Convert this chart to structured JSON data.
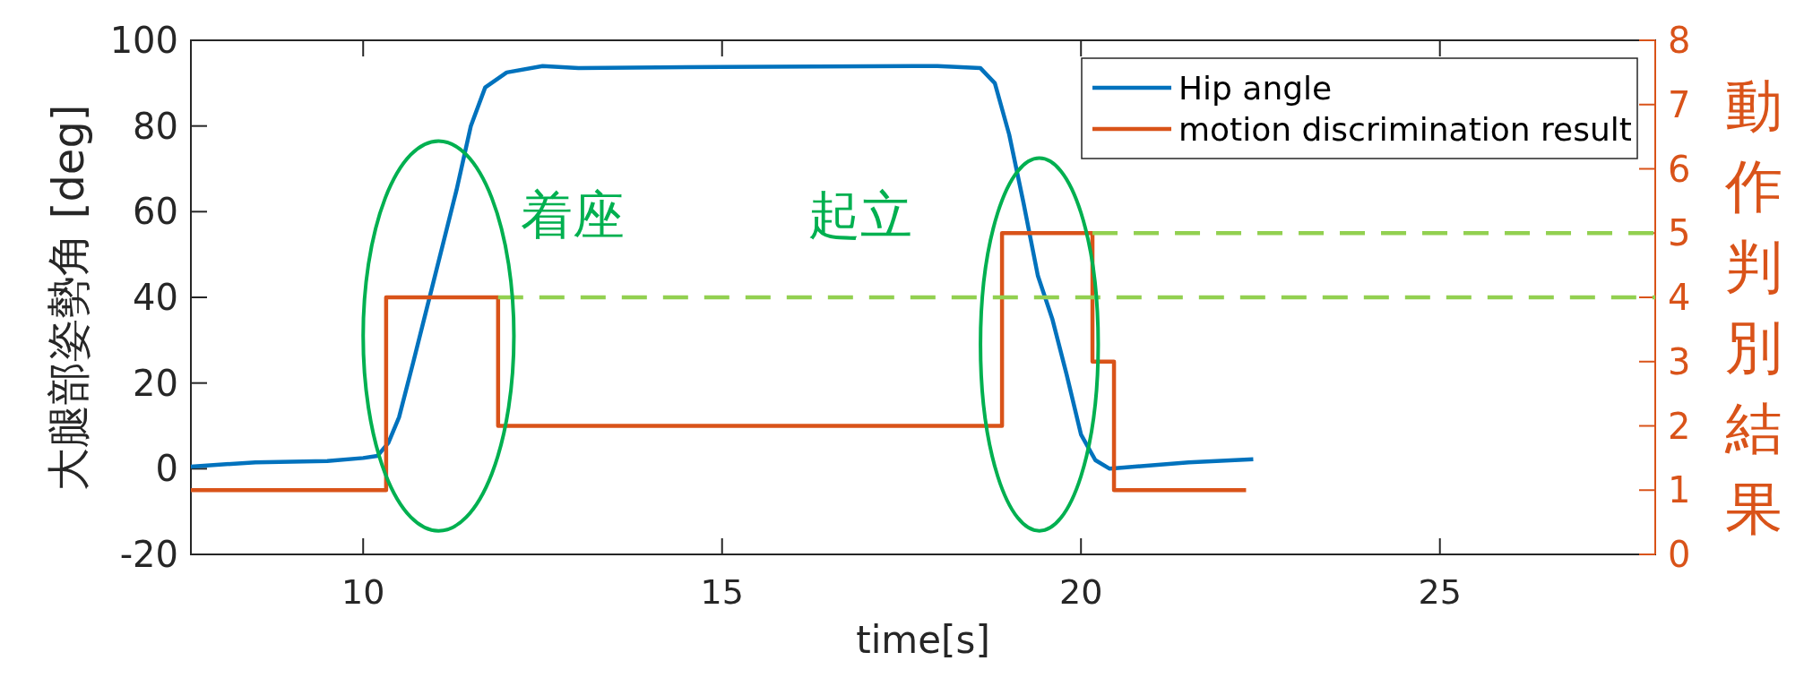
{
  "chart_data": {
    "type": "line",
    "xlabel": "time[s]",
    "ylabel": "大腿部姿勢角 [deg]",
    "y2label": "動作判別結果",
    "xlim": [
      7.6,
      28
    ],
    "xticks": [
      10,
      15,
      20,
      25
    ],
    "ylim": [
      -20,
      100
    ],
    "yticks": [
      -20,
      0,
      20,
      40,
      60,
      80,
      100
    ],
    "y2lim": [
      0,
      8
    ],
    "y2ticks": [
      0,
      1,
      2,
      3,
      4,
      5,
      6,
      7,
      8
    ],
    "legend": "top right",
    "grid": false,
    "series": [
      {
        "name": "Hip angle",
        "color": "#0072bd",
        "x": [
          7.6,
          8.5,
          9.5,
          10.0,
          10.2,
          10.35,
          10.5,
          10.7,
          11.0,
          11.3,
          11.5,
          11.7,
          12.0,
          12.5,
          13,
          15,
          18,
          18.6,
          18.8,
          19.0,
          19.2,
          19.4,
          19.6,
          19.8,
          20.0,
          20.2,
          20.4,
          20.6,
          21.5,
          22.4
        ],
        "values": [
          0.5,
          1.5,
          1.8,
          2.5,
          3,
          6,
          12,
          25,
          45,
          65,
          80,
          89,
          92.5,
          94,
          93.5,
          93.8,
          94,
          93.5,
          90,
          78,
          62,
          45,
          35,
          22,
          8,
          2,
          0,
          0.3,
          1.5,
          2.2
        ]
      },
      {
        "name": "motion discrimination result",
        "type": "step",
        "axis": "y2",
        "color": "#d95319",
        "x": [
          7.6,
          10.32,
          11.88,
          18.9,
          20.16,
          20.46,
          22.3
        ],
        "values": [
          1,
          4,
          2,
          5,
          3,
          1,
          1
        ]
      },
      {
        "type": "line",
        "axis": "y2",
        "color": "#92d050",
        "line_style": "dashed",
        "x": [
          11.88,
          28
        ],
        "values": [
          4,
          4
        ]
      },
      {
        "type": "line",
        "axis": "y2",
        "color": "#92d050",
        "line_style": "dashed",
        "x": [
          20.16,
          28
        ],
        "values": [
          5,
          5
        ]
      }
    ],
    "annotations": [
      "着座",
      "起立"
    ]
  }
}
